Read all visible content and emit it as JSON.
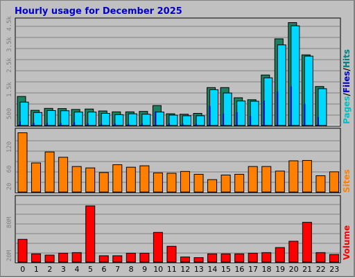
{
  "chart_data": {
    "type": "bar",
    "title": "Hourly usage for December 2025",
    "categories": [
      "0",
      "1",
      "2",
      "3",
      "4",
      "5",
      "6",
      "7",
      "8",
      "9",
      "10",
      "11",
      "12",
      "13",
      "14",
      "15",
      "16",
      "17",
      "18",
      "19",
      "20",
      "21",
      "22",
      "23"
    ],
    "colors": {
      "pages": "#008080",
      "pages_face": "#1a8060",
      "files": "#0000cc",
      "hits": "#00d8ff",
      "sites": "#ff8000",
      "volume": "#ff0000",
      "title": "#0000cc",
      "background": "#c0c0c0"
    },
    "panels": [
      {
        "id": "hits_files_pages",
        "yticks": [
          "500",
          "1.5k",
          "2.5k",
          "3.5k",
          "4.5k"
        ],
        "ylim": [
          0,
          4800
        ],
        "side_label_parts": [
          {
            "text": "Pages",
            "color": "#00c0c0"
          },
          {
            "text": "/",
            "color": "#000000"
          },
          {
            "text": "Files",
            "color": "#0000cc"
          },
          {
            "text": "/",
            "color": "#000000"
          },
          {
            "text": "Hits",
            "color": "#008080"
          }
        ],
        "series": [
          {
            "name": "Hits",
            "values": [
              1340,
              700,
              790,
              780,
              740,
              760,
              670,
              630,
              630,
              650,
              920,
              540,
              520,
              560,
              1750,
              1750,
              1280,
              1190,
              2330,
              4000,
              4750,
              3260,
              1800,
              0
            ]
          },
          {
            "name": "Files",
            "values": [
              1080,
              600,
              690,
              680,
              620,
              620,
              560,
              500,
              540,
              520,
              620,
              480,
              450,
              450,
              1650,
              1500,
              1130,
              1120,
              2200,
              3720,
              4600,
              3200,
              1700,
              0
            ]
          },
          {
            "name": "Pages",
            "values": [
              180,
              120,
              120,
              120,
              150,
              100,
              80,
              100,
              80,
              100,
              650,
              110,
              90,
              90,
              900,
              550,
              620,
              440,
              1150,
              1560,
              1800,
              1000,
              380,
              0
            ]
          }
        ]
      },
      {
        "id": "sites",
        "yticks": [
          "20",
          "60",
          "120"
        ],
        "ylim": [
          0,
          170
        ],
        "side_label": "Sites",
        "series": [
          {
            "name": "Sites",
            "values": [
              167,
              82,
              113,
              98,
              72,
              68,
              55,
              77,
              70,
              74,
              54,
              53,
              58,
              50,
              35,
              48,
              50,
              72,
              72,
              59,
              88,
              89,
              46,
              57
            ]
          }
        ]
      },
      {
        "id": "volume",
        "yticks": [
          "20M",
          "80M"
        ],
        "ylim": [
          0,
          100
        ],
        "side_label": "Volume",
        "series": [
          {
            "name": "Volume",
            "values": [
              36,
              13,
              11,
              14,
              15,
              89,
              10,
              10,
              14,
              14,
              47,
              25,
              8,
              7,
              13,
              13,
              13,
              14,
              15,
              23,
              33,
              63,
              15,
              12
            ]
          }
        ]
      }
    ]
  }
}
